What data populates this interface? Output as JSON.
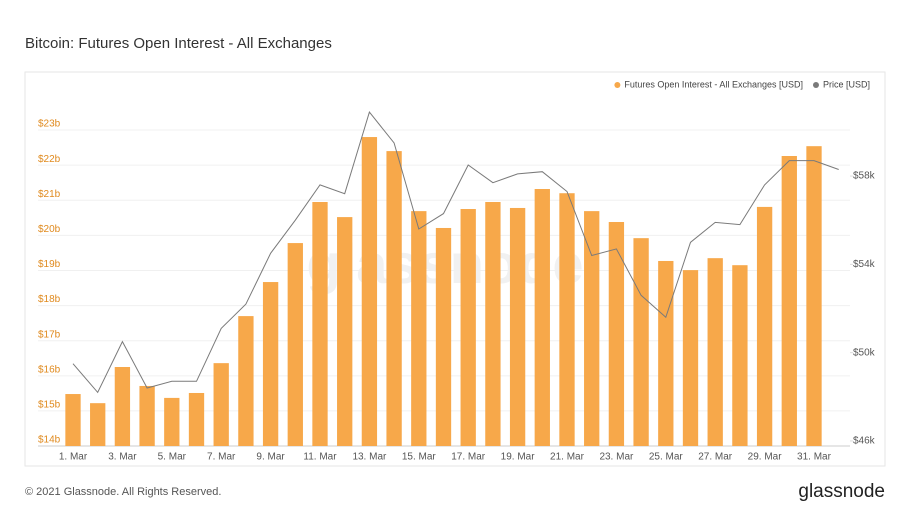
{
  "chart_data": {
    "type": "bar",
    "title": "Bitcoin: Futures Open Interest - All Exchanges",
    "watermark": "glassnode",
    "footer": "© 2021 Glassnode. All Rights Reserved.",
    "brand": "glassnode",
    "categories": [
      "1. Mar",
      null,
      "3. Mar",
      null,
      "5. Mar",
      null,
      "7. Mar",
      null,
      "9. Mar",
      null,
      "11. Mar",
      null,
      "13. Mar",
      null,
      "15. Mar",
      null,
      "17. Mar",
      null,
      "19. Mar",
      null,
      "21. Mar",
      null,
      "23. Mar",
      null,
      "25. Mar",
      null,
      "27. Mar",
      null,
      "29. Mar",
      null,
      "31. Mar",
      null
    ],
    "series": [
      {
        "name": "Futures Open Interest - All Exchanges [USD]",
        "type": "bar",
        "color": "#f7a84a",
        "values": [
          15.31,
          15.05,
          16.08,
          15.54,
          15.2,
          15.34,
          16.19,
          17.53,
          18.5,
          19.61,
          20.78,
          20.35,
          22.63,
          22.23,
          20.52,
          20.04,
          20.58,
          20.78,
          20.61,
          21.15,
          21.03,
          20.52,
          20.21,
          19.75,
          19.1,
          18.84,
          19.18,
          18.98,
          20.64,
          22.09,
          22.37,
          null
        ]
      },
      {
        "name": "Price [USD]",
        "type": "line",
        "axis": "y2",
        "color": "#7a7a7a",
        "values": [
          49.5,
          48.2,
          50.5,
          48.4,
          48.7,
          48.7,
          51.1,
          52.2,
          54.5,
          56.0,
          57.6,
          57.2,
          60.9,
          59.5,
          55.6,
          56.3,
          58.5,
          57.7,
          58.1,
          58.2,
          57.3,
          54.4,
          54.7,
          52.6,
          51.6,
          55.0,
          55.9,
          55.8,
          57.6,
          58.7,
          58.7,
          58.3
        ]
      }
    ],
    "ylim": [
      13.83,
      23.97
    ],
    "yticks": [
      {
        "value": 14,
        "label": "$14b"
      },
      {
        "value": 15,
        "label": "$15b"
      },
      {
        "value": 16,
        "label": "$16b"
      },
      {
        "value": 17,
        "label": "$17b"
      },
      {
        "value": 18,
        "label": "$18b"
      },
      {
        "value": 19,
        "label": "$19b"
      },
      {
        "value": 20,
        "label": "$20b"
      },
      {
        "value": 21,
        "label": "$21b"
      },
      {
        "value": 22,
        "label": "$22b"
      },
      {
        "value": 23,
        "label": "$23b"
      }
    ],
    "y2lim": [
      45.77,
      61.9
    ],
    "y2ticks": [
      {
        "value": 46,
        "label": "$46k"
      },
      {
        "value": 50,
        "label": "$50k"
      },
      {
        "value": 54,
        "label": "$54k"
      },
      {
        "value": 58,
        "label": "$58k"
      }
    ],
    "grid": true,
    "legend": "top-right"
  }
}
